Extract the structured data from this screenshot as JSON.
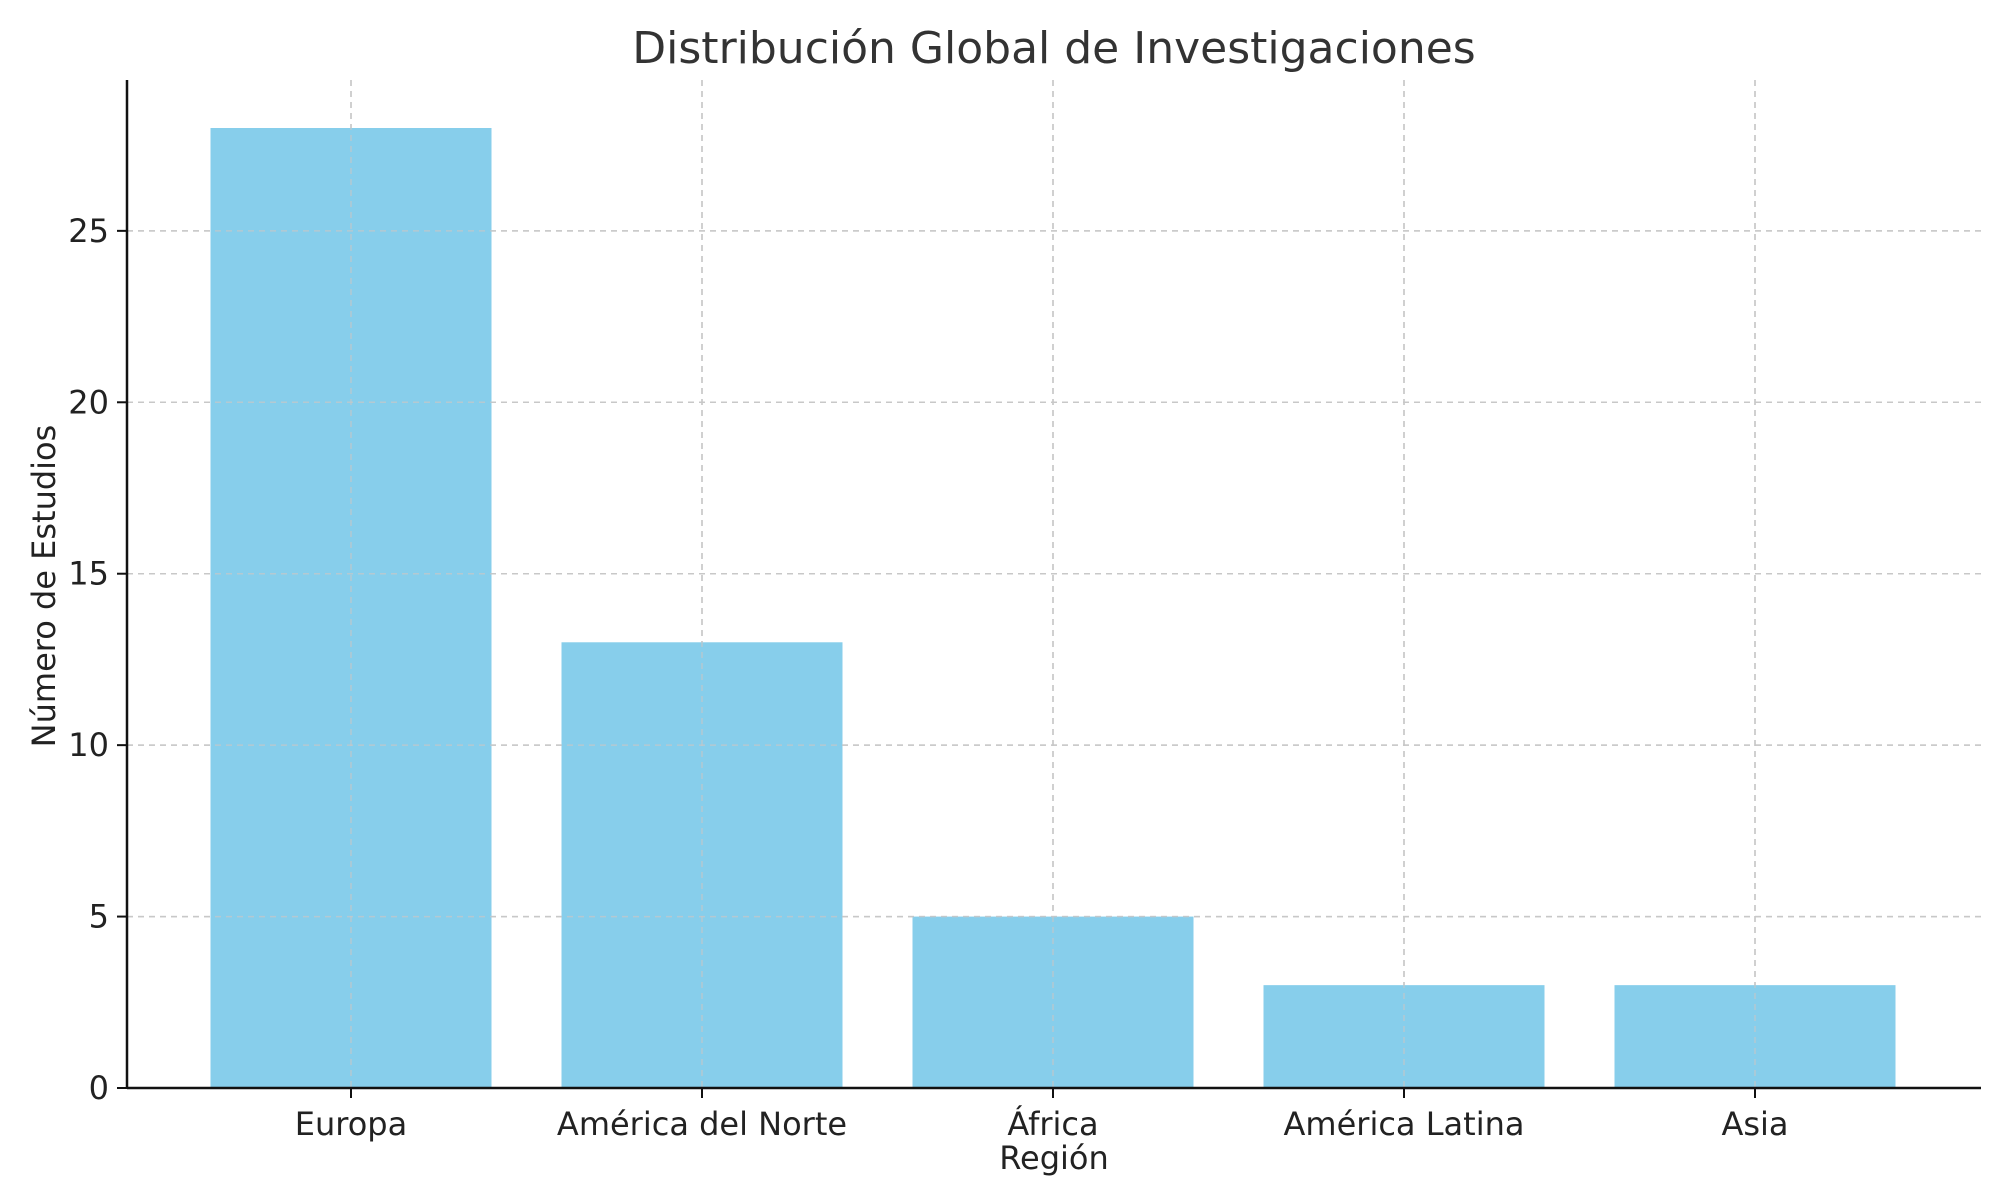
{
  "chart_data": {
    "type": "bar",
    "title": "Distribución Global de Investigaciones",
    "xlabel": "Región",
    "ylabel": "Número de Estudios",
    "categories": [
      "Europa",
      "América del Norte",
      "África",
      "América Latina",
      "Asia"
    ],
    "values": [
      28,
      13,
      5,
      3,
      3
    ],
    "ylim": [
      0,
      29.4
    ],
    "yticks": [
      0,
      5,
      10,
      15,
      20,
      25
    ],
    "grid": true,
    "colors": {
      "bar": "#87ceeb",
      "grid": "#c8c8c8",
      "axis": "#111111"
    }
  }
}
